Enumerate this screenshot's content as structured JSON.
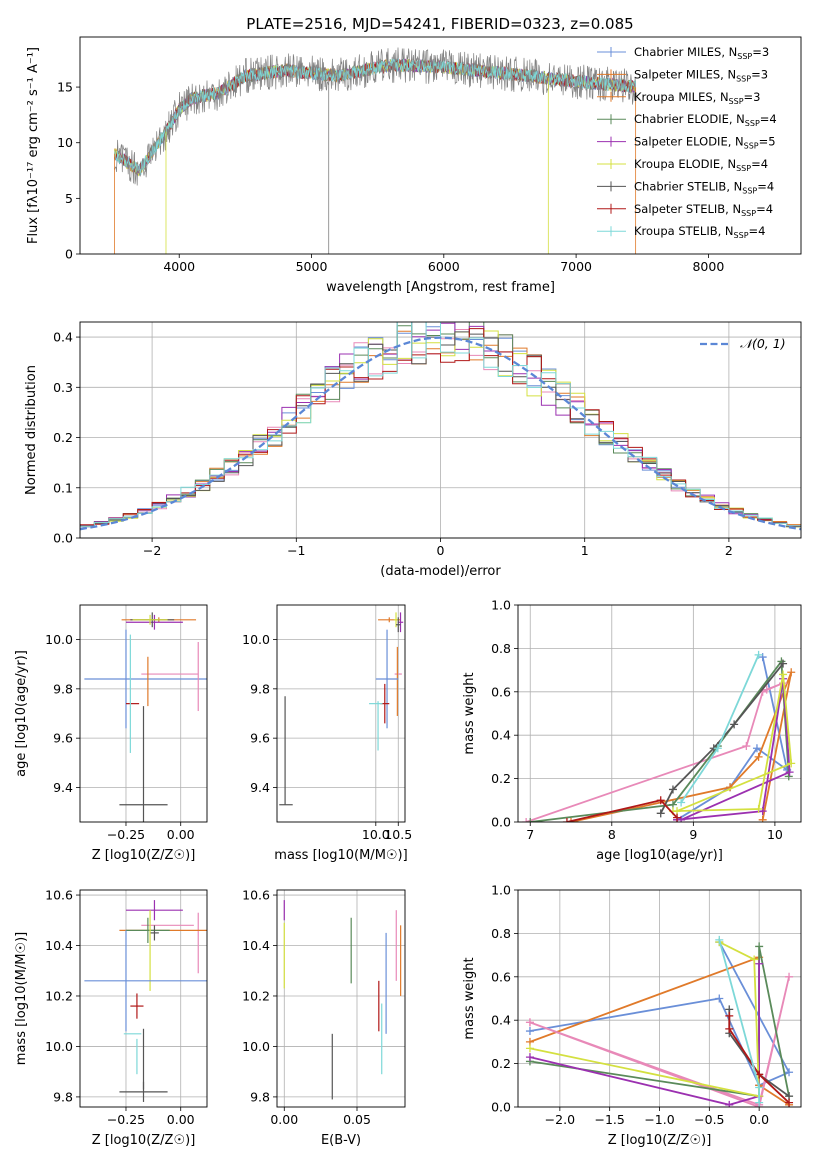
{
  "figure": {
    "title": "PLATE=2516, MJD=54241, FIBERID=0323, z=0.085"
  },
  "model_legend": [
    {
      "label": "Chabrier MILES, N",
      "sub": "SSP",
      "suffix": "=3",
      "color": "#6a8fd8"
    },
    {
      "label": "Salpeter MILES, N",
      "sub": "SSP",
      "suffix": "=3",
      "color": "#e07a2a"
    },
    {
      "label": "Kroupa MILES, N",
      "sub": "SSP",
      "suffix": "=3",
      "color": "#e07a2a"
    },
    {
      "label": "Chabrier ELODIE, N",
      "sub": "SSP",
      "suffix": "=4",
      "color": "#5a8a5a"
    },
    {
      "label": "Salpeter ELODIE, N",
      "sub": "SSP",
      "suffix": "=5",
      "color": "#9b30b0"
    },
    {
      "label": "Kroupa ELODIE, N",
      "sub": "SSP",
      "suffix": "=4",
      "color": "#d4e040"
    },
    {
      "label": "Chabrier STELIB, N",
      "sub": "SSP",
      "suffix": "=4",
      "color": "#555555"
    },
    {
      "label": "Salpeter STELIB, N",
      "sub": "SSP",
      "suffix": "=4",
      "color": "#b01818"
    },
    {
      "label": "Kroupa STELIB, N",
      "sub": "SSP",
      "suffix": "=4",
      "color": "#7dd8d8"
    }
  ],
  "chart_data": [
    {
      "type": "line",
      "id": "spectrum",
      "xlabel": "wavelength [Angstrom, rest frame]",
      "ylabel": "Flux [f",
      "ylabel_full": "Flux [fλ10⁻¹⁷ erg cm⁻² s⁻¹ A⁻¹]",
      "xlim": [
        3250,
        8700
      ],
      "ylim": [
        0,
        19.5
      ],
      "xticks": [
        4000,
        5000,
        6000,
        7000,
        8000
      ],
      "yticks": [
        0,
        5,
        10,
        15
      ],
      "data_range": [
        3510,
        7450
      ],
      "continuum_points": [
        [
          3510,
          9.0
        ],
        [
          3700,
          7.5
        ],
        [
          3900,
          11.0
        ],
        [
          4000,
          13.0
        ],
        [
          4100,
          14.0
        ],
        [
          4300,
          14.5
        ],
        [
          4500,
          16.0
        ],
        [
          4800,
          16.5
        ],
        [
          5200,
          16.0
        ],
        [
          5600,
          17.0
        ],
        [
          6000,
          16.8
        ],
        [
          6500,
          16.2
        ],
        [
          7000,
          15.5
        ],
        [
          7450,
          15.0
        ]
      ]
    },
    {
      "type": "bar",
      "id": "residual-hist",
      "xlabel": "(data-model)/error",
      "ylabel": "Normed distribution",
      "xlim": [
        -2.5,
        2.5
      ],
      "ylim": [
        0,
        0.43
      ],
      "xticks": [
        -2,
        -1,
        0,
        1,
        2
      ],
      "yticks": [
        0.0,
        0.1,
        0.2,
        0.3,
        0.4
      ],
      "legend": "𝒩(0, 1)",
      "bin_edges_from": -2.5,
      "bin_width": 0.1
    },
    {
      "type": "scatter",
      "id": "age-vs-Z",
      "xlabel": "Z [log10(Z/Z☉)]",
      "ylabel": "age  [log10(age/yr)]",
      "xlim": [
        -0.46,
        0.12
      ],
      "ylim": [
        9.26,
        10.14
      ],
      "xticks": [
        -0.25,
        0.0
      ],
      "xticklabels": [
        "−0.25",
        "0.00"
      ],
      "yticks": [
        9.4,
        9.6,
        9.8,
        10.0
      ],
      "points": [
        {
          "x": -0.1,
          "y": 10.08,
          "xerr": 0.17,
          "yerr": 0.01,
          "color": "#e07a2a"
        },
        {
          "x": -0.12,
          "y": 10.07,
          "xerr": 0.13,
          "yerr": 0.03,
          "color": "#9b30b0"
        },
        {
          "x": -0.13,
          "y": 10.08,
          "xerr": 0.1,
          "yerr": 0.03,
          "color": "#555555"
        },
        {
          "x": -0.14,
          "y": 10.08,
          "xerr": 0.08,
          "yerr": 0.02,
          "color": "#d4e040"
        },
        {
          "x": -0.1,
          "y": 9.84,
          "xerr": 0.34,
          "yerr": 0.0,
          "color": "#6a8fd8"
        },
        {
          "x": -0.25,
          "y": 9.84,
          "xerr": 0.0,
          "yerr": 0.2,
          "color": "#6a8fd8"
        },
        {
          "x": -0.05,
          "y": 9.86,
          "xerr": 0.13,
          "yerr": 0.0,
          "color": "#e889b8"
        },
        {
          "x": 0.08,
          "y": 9.85,
          "xerr": 0.0,
          "yerr": 0.14,
          "color": "#e889b8"
        },
        {
          "x": -0.15,
          "y": 9.83,
          "xerr": 0.0,
          "yerr": 0.1,
          "color": "#e07a2a"
        },
        {
          "x": -0.22,
          "y": 9.74,
          "xerr": 0.03,
          "yerr": 0.0,
          "color": "#b01818"
        },
        {
          "x": -0.23,
          "y": 9.78,
          "xerr": 0.0,
          "yerr": 0.24,
          "color": "#7dd8d8"
        },
        {
          "x": -0.17,
          "y": 9.33,
          "xerr": 0.11,
          "yerr": 0.4,
          "color": "#555555"
        }
      ]
    },
    {
      "type": "scatter",
      "id": "age-vs-mass",
      "xlabel": "mass [log10(M/M☉)]",
      "ylabel": "",
      "xlim": [
        7.8,
        10.65
      ],
      "ylim": [
        9.26,
        10.14
      ],
      "xticks": [
        10.0,
        10.5
      ],
      "xticklabels": [
        "10.0",
        "10.5"
      ],
      "yticks": [
        9.4,
        9.6,
        9.8,
        10.0
      ],
      "points": [
        {
          "x": 10.3,
          "y": 10.08,
          "xerr": 0.25,
          "yerr": 0.01,
          "color": "#e07a2a"
        },
        {
          "x": 10.45,
          "y": 10.08,
          "xerr": 0.05,
          "yerr": 0.03,
          "color": "#d4e040"
        },
        {
          "x": 10.55,
          "y": 10.07,
          "xerr": 0.06,
          "yerr": 0.04,
          "color": "#9b30b0"
        },
        {
          "x": 10.5,
          "y": 10.06,
          "xerr": 0.05,
          "yerr": 0.03,
          "color": "#555555"
        },
        {
          "x": 10.5,
          "y": 9.86,
          "xerr": 0.08,
          "yerr": 0.0,
          "color": "#e889b8"
        },
        {
          "x": 10.48,
          "y": 9.83,
          "xerr": 0.0,
          "yerr": 0.14,
          "color": "#e07a2a"
        },
        {
          "x": 10.25,
          "y": 9.84,
          "xerr": 0.25,
          "yerr": 0.0,
          "color": "#6a8fd8"
        },
        {
          "x": 10.25,
          "y": 9.84,
          "xerr": 0.0,
          "yerr": 0.2,
          "color": "#6a8fd8"
        },
        {
          "x": 10.2,
          "y": 9.74,
          "xerr": 0.1,
          "yerr": 0.08,
          "color": "#b01818"
        },
        {
          "x": 10.0,
          "y": 9.74,
          "xerr": 0.15,
          "yerr": 0.0,
          "color": "#7dd8d8"
        },
        {
          "x": 10.05,
          "y": 9.65,
          "xerr": 0.0,
          "yerr": 0.1,
          "color": "#7dd8d8"
        },
        {
          "x": 8.0,
          "y": 9.33,
          "xerr": 0.15,
          "yerr": 0.0,
          "color": "#555555"
        },
        {
          "x": 7.98,
          "y": 9.55,
          "xerr": 0.0,
          "yerr": 0.22,
          "color": "#555555"
        }
      ]
    },
    {
      "type": "line",
      "id": "massweight-vs-age",
      "xlabel": "age  [log10(age/yr)]",
      "ylabel": "mass weight",
      "xlim": [
        6.85,
        10.32
      ],
      "ylim": [
        0,
        1.0
      ],
      "xticks": [
        7,
        8,
        9,
        10
      ],
      "yticks": [
        0.0,
        0.2,
        0.4,
        0.6,
        0.8,
        1.0
      ],
      "series": [
        {
          "color": "#6a8fd8",
          "x": [
            8.8,
            9.45,
            9.78,
            10.15,
            9.85
          ],
          "y": [
            0.01,
            0.16,
            0.34,
            0.24,
            0.76
          ]
        },
        {
          "color": "#e07a2a",
          "x": [
            7.5,
            9.45,
            9.8,
            10.2,
            9.85
          ],
          "y": [
            0.0,
            0.16,
            0.3,
            0.69,
            0.01
          ]
        },
        {
          "color": "#e889b8",
          "x": [
            6.95,
            9.65,
            9.85,
            10.1,
            9.9
          ],
          "y": [
            0.0,
            0.35,
            0.6,
            0.64,
            0.61
          ]
        },
        {
          "color": "#5a8a5a",
          "x": [
            7.0,
            8.75,
            9.3,
            10.08,
            10.17
          ],
          "y": [
            0.0,
            0.08,
            0.35,
            0.74,
            0.21
          ]
        },
        {
          "color": "#9b30b0",
          "x": [
            8.8,
            9.85,
            10.1,
            10.18,
            8.85
          ],
          "y": [
            0.01,
            0.05,
            0.66,
            0.23,
            0.01
          ]
        },
        {
          "color": "#d4e040",
          "x": [
            8.75,
            9.8,
            10.1,
            10.2,
            8.8
          ],
          "y": [
            0.05,
            0.06,
            0.68,
            0.27,
            0.05
          ]
        },
        {
          "color": "#555555",
          "x": [
            8.6,
            8.75,
            9.25,
            9.5,
            10.1
          ],
          "y": [
            0.04,
            0.15,
            0.34,
            0.45,
            0.73
          ]
        },
        {
          "color": "#b01818",
          "x": [
            7.45,
            8.6,
            8.8
          ],
          "y": [
            0.0,
            0.1,
            0.02
          ]
        },
        {
          "color": "#7dd8d8",
          "x": [
            8.85,
            9.3,
            9.8
          ],
          "y": [
            0.09,
            0.34,
            0.77
          ]
        }
      ]
    },
    {
      "type": "scatter",
      "id": "mass-vs-Z",
      "xlabel": "Z [log10(Z/Z☉)]",
      "ylabel": "mass [log10(M/M☉)]",
      "xlim": [
        -0.46,
        0.12
      ],
      "ylim": [
        9.76,
        10.62
      ],
      "xticks": [
        -0.25,
        0.0
      ],
      "xticklabels": [
        "−0.25",
        "0.00"
      ],
      "yticks": [
        9.8,
        10.0,
        10.2,
        10.4,
        10.6
      ],
      "points": [
        {
          "x": -0.12,
          "y": 10.54,
          "xerr": 0.13,
          "yerr": 0.04,
          "color": "#9b30b0"
        },
        {
          "x": 0.08,
          "y": 10.41,
          "xerr": 0.0,
          "yerr": 0.12,
          "color": "#e889b8"
        },
        {
          "x": -0.06,
          "y": 10.48,
          "xerr": 0.12,
          "yerr": 0.0,
          "color": "#e889b8"
        },
        {
          "x": -0.08,
          "y": 10.46,
          "xerr": 0.2,
          "yerr": 0.0,
          "color": "#e07a2a"
        },
        {
          "x": -0.15,
          "y": 10.46,
          "xerr": 0.1,
          "yerr": 0.05,
          "color": "#5a8a5a"
        },
        {
          "x": -0.12,
          "y": 10.45,
          "xerr": 0.02,
          "yerr": 0.03,
          "color": "#555555"
        },
        {
          "x": -0.14,
          "y": 10.38,
          "xerr": 0.0,
          "yerr": 0.16,
          "color": "#d4e040"
        },
        {
          "x": -0.1,
          "y": 10.26,
          "xerr": 0.34,
          "yerr": 0.0,
          "color": "#6a8fd8"
        },
        {
          "x": -0.25,
          "y": 10.26,
          "xerr": 0.0,
          "yerr": 0.2,
          "color": "#6a8fd8"
        },
        {
          "x": -0.2,
          "y": 10.16,
          "xerr": 0.03,
          "yerr": 0.05,
          "color": "#b01818"
        },
        {
          "x": -0.22,
          "y": 10.05,
          "xerr": 0.04,
          "yerr": 0.0,
          "color": "#7dd8d8"
        },
        {
          "x": -0.2,
          "y": 9.96,
          "xerr": 0.0,
          "yerr": 0.07,
          "color": "#7dd8d8"
        },
        {
          "x": -0.17,
          "y": 9.82,
          "xerr": 0.11,
          "yerr": 0.04,
          "color": "#555555"
        },
        {
          "x": -0.17,
          "y": 9.95,
          "xerr": 0.0,
          "yerr": 0.12,
          "color": "#555555"
        }
      ]
    },
    {
      "type": "scatter",
      "id": "mass-vs-EBV",
      "xlabel": "E(B-V)",
      "ylabel": "",
      "xlim": [
        -0.005,
        0.083
      ],
      "ylim": [
        9.76,
        10.62
      ],
      "xticks": [
        0.0,
        0.05
      ],
      "xticklabels": [
        "0.00",
        "0.05"
      ],
      "yticks": [
        9.8,
        10.0,
        10.2,
        10.4,
        10.6
      ],
      "points": [
        {
          "x": 0.0,
          "y": 10.54,
          "xerr": 0.0,
          "yerr": 0.04,
          "color": "#9b30b0"
        },
        {
          "x": 0.0,
          "y": 10.36,
          "xerr": 0.0,
          "yerr": 0.13,
          "color": "#d4e040"
        },
        {
          "x": 0.046,
          "y": 10.38,
          "xerr": 0.0,
          "yerr": 0.13,
          "color": "#5a8a5a"
        },
        {
          "x": 0.077,
          "y": 10.4,
          "xerr": 0.0,
          "yerr": 0.14,
          "color": "#e889b8"
        },
        {
          "x": 0.08,
          "y": 10.34,
          "xerr": 0.0,
          "yerr": 0.14,
          "color": "#e07a2a"
        },
        {
          "x": 0.07,
          "y": 10.25,
          "xerr": 0.0,
          "yerr": 0.2,
          "color": "#6a8fd8"
        },
        {
          "x": 0.065,
          "y": 10.16,
          "xerr": 0.0,
          "yerr": 0.1,
          "color": "#b01818"
        },
        {
          "x": 0.067,
          "y": 10.03,
          "xerr": 0.0,
          "yerr": 0.14,
          "color": "#7dd8d8"
        },
        {
          "x": 0.033,
          "y": 9.92,
          "xerr": 0.0,
          "yerr": 0.13,
          "color": "#555555"
        }
      ]
    },
    {
      "type": "line",
      "id": "massweight-vs-Z",
      "xlabel": "Z [log10(Z/Z☉)]",
      "ylabel": "mass weight",
      "xlim": [
        -2.42,
        0.42
      ],
      "ylim": [
        0,
        1.0
      ],
      "xticks": [
        -2.0,
        -1.5,
        -1.0,
        -0.5,
        0.0
      ],
      "xticklabels": [
        "−2.0",
        "−1.5",
        "−1.0",
        "−0.5",
        "0.0"
      ],
      "yticks": [
        0.0,
        0.2,
        0.4,
        0.6,
        0.8,
        1.0
      ],
      "series": [
        {
          "color": "#6a8fd8",
          "x": [
            -2.3,
            -0.4,
            0.0,
            0.3,
            -0.4
          ],
          "y": [
            0.35,
            0.5,
            0.1,
            0.16,
            0.76
          ]
        },
        {
          "color": "#e07a2a",
          "x": [
            -2.3,
            0.0,
            0.0,
            0.3
          ],
          "y": [
            0.3,
            0.69,
            0.1,
            0.01
          ]
        },
        {
          "color": "#e889b8",
          "x": [
            -2.3,
            0.0,
            0.3,
            0.0,
            -2.3
          ],
          "y": [
            0.39,
            0.0,
            0.6,
            0.01,
            0.39
          ]
        },
        {
          "color": "#5a8a5a",
          "x": [
            -2.3,
            0.0,
            0.0,
            0.3
          ],
          "y": [
            0.21,
            0.05,
            0.74,
            0.05
          ]
        },
        {
          "color": "#9b30b0",
          "x": [
            -2.3,
            -0.3,
            0.0,
            0.0
          ],
          "y": [
            0.23,
            0.01,
            0.05,
            0.66
          ]
        },
        {
          "color": "#d4e040",
          "x": [
            -2.3,
            0.0,
            -0.05,
            -0.4
          ],
          "y": [
            0.27,
            0.05,
            0.68,
            0.76
          ]
        },
        {
          "color": "#555555",
          "x": [
            -0.3,
            -0.3,
            0.0,
            0.3
          ],
          "y": [
            0.45,
            0.34,
            0.15,
            0.05
          ]
        },
        {
          "color": "#b01818",
          "x": [
            -0.3,
            -0.3,
            0.0,
            0.3
          ],
          "y": [
            0.42,
            0.36,
            0.15,
            0.02
          ]
        },
        {
          "color": "#7dd8d8",
          "x": [
            -0.4,
            0.0,
            0.0
          ],
          "y": [
            0.77,
            0.09,
            0.02
          ]
        }
      ]
    }
  ]
}
